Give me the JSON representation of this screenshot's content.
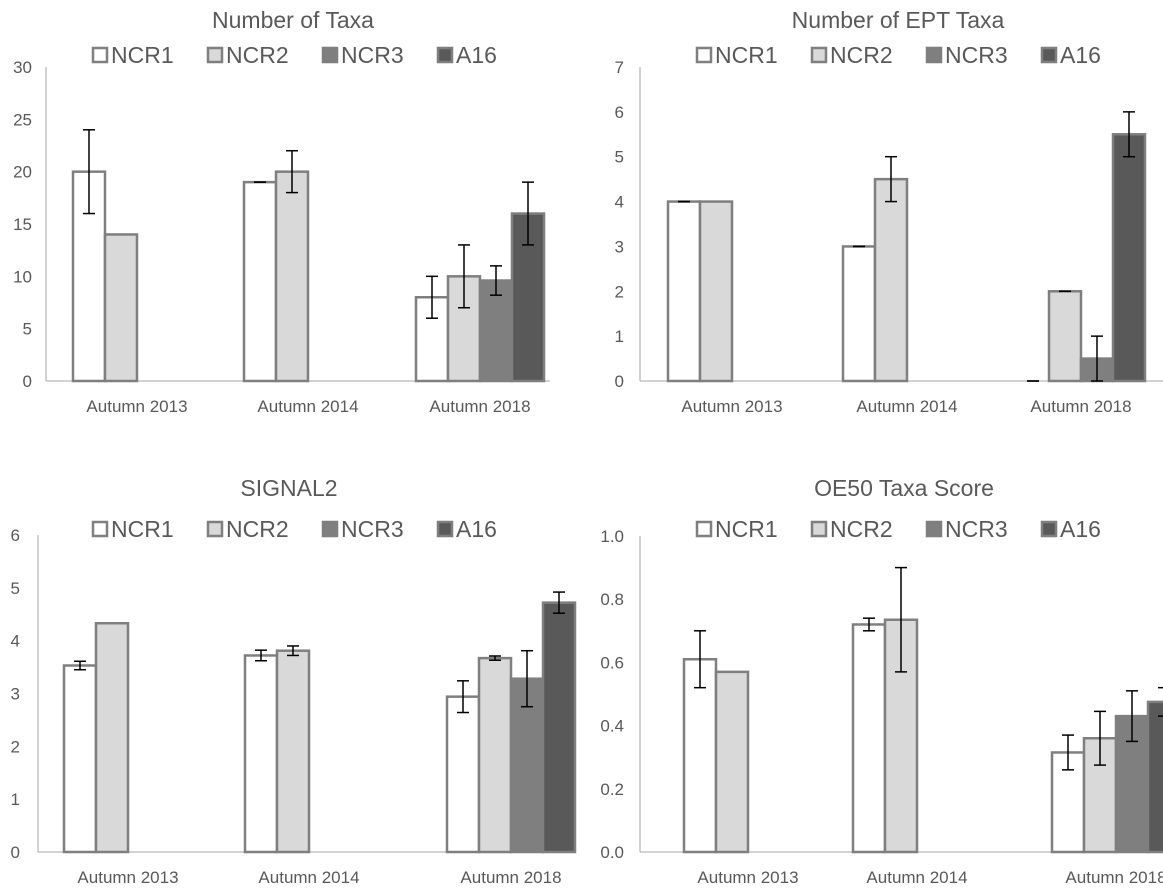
{
  "chart_data": [
    {
      "type": "bar",
      "title": "Number of Taxa",
      "categories": [
        "Autumn 2013",
        "Autumn 2014",
        "Autumn 2018"
      ],
      "ylim": [
        0,
        30
      ],
      "yticks": [
        "0",
        "5",
        "10",
        "15",
        "20",
        "25",
        "30"
      ],
      "ytick_values": [
        0,
        5,
        10,
        15,
        20,
        25,
        30
      ],
      "legend_position": "top",
      "grid": false,
      "series": [
        {
          "name": "NCR1",
          "values": [
            20,
            19,
            8
          ],
          "errors": [
            4,
            0,
            2
          ]
        },
        {
          "name": "NCR2",
          "values": [
            14,
            20,
            10
          ],
          "errors": [
            null,
            2,
            3
          ]
        },
        {
          "name": "NCR3",
          "values": [
            null,
            null,
            9.6
          ],
          "errors": [
            null,
            null,
            1.4
          ]
        },
        {
          "name": "A16",
          "values": [
            null,
            null,
            16
          ],
          "errors": [
            null,
            null,
            3
          ]
        }
      ]
    },
    {
      "type": "bar",
      "title": "Number of EPT Taxa",
      "categories": [
        "Autumn 2013",
        "Autumn 2014",
        "Autumn 2018"
      ],
      "ylim": [
        0,
        7
      ],
      "yticks": [
        "0",
        "1",
        "2",
        "3",
        "4",
        "5",
        "6",
        "7"
      ],
      "ytick_values": [
        0,
        1,
        2,
        3,
        4,
        5,
        6,
        7
      ],
      "legend_position": "top",
      "grid": false,
      "series": [
        {
          "name": "NCR1",
          "values": [
            4,
            3,
            0
          ],
          "errors": [
            0,
            0,
            0
          ]
        },
        {
          "name": "NCR2",
          "values": [
            4,
            4.5,
            2
          ],
          "errors": [
            null,
            0.5,
            0
          ]
        },
        {
          "name": "NCR3",
          "values": [
            null,
            null,
            0.5
          ],
          "errors": [
            null,
            null,
            0.5
          ]
        },
        {
          "name": "A16",
          "values": [
            null,
            null,
            5.5
          ],
          "errors": [
            null,
            null,
            0.5
          ]
        }
      ]
    },
    {
      "type": "bar",
      "title": "SIGNAL2",
      "categories": [
        "Autumn 2013",
        "Autumn 2014",
        "Autumn 2018"
      ],
      "ylim": [
        0,
        6
      ],
      "yticks": [
        "0",
        "1",
        "2",
        "3",
        "4",
        "5",
        "6"
      ],
      "ytick_values": [
        0,
        1,
        2,
        3,
        4,
        5,
        6
      ],
      "legend_position": "top",
      "grid": false,
      "series": [
        {
          "name": "NCR1",
          "values": [
            3.53,
            3.72,
            2.94
          ],
          "errors": [
            0.08,
            0.1,
            0.3
          ]
        },
        {
          "name": "NCR2",
          "values": [
            4.33,
            3.81,
            3.67
          ],
          "errors": [
            null,
            0.09,
            0.04
          ]
        },
        {
          "name": "NCR3",
          "values": [
            null,
            null,
            3.28
          ],
          "errors": [
            null,
            null,
            0.53
          ]
        },
        {
          "name": "A16",
          "values": [
            null,
            null,
            4.72
          ],
          "errors": [
            null,
            null,
            0.2
          ]
        }
      ]
    },
    {
      "type": "bar",
      "title": "OE50 Taxa Score",
      "categories": [
        "Autumn 2013",
        "Autumn 2014",
        "Autumn 2018"
      ],
      "ylim": [
        0,
        1.0
      ],
      "yticks": [
        "0.0",
        "0.2",
        "0.4",
        "0.6",
        "0.8",
        "1.0"
      ],
      "ytick_values": [
        0,
        0.2,
        0.4,
        0.6,
        0.8,
        1.0
      ],
      "legend_position": "top",
      "grid": false,
      "series": [
        {
          "name": "NCR1",
          "values": [
            0.61,
            0.72,
            0.315
          ],
          "errors": [
            0.09,
            0.02,
            0.055
          ]
        },
        {
          "name": "NCR2",
          "values": [
            0.57,
            0.735,
            0.36
          ],
          "errors": [
            null,
            0.165,
            0.085
          ]
        },
        {
          "name": "NCR3",
          "values": [
            null,
            null,
            0.43
          ],
          "errors": [
            null,
            null,
            0.08
          ]
        },
        {
          "name": "A16",
          "values": [
            null,
            null,
            0.475
          ],
          "errors": [
            null,
            null,
            0.045
          ]
        }
      ]
    }
  ],
  "colors": {
    "NCR1": "#ffffff",
    "NCR2": "#d9d9d9",
    "NCR3": "#7f7f7f",
    "A16": "#595959",
    "outline": "#7f7f7f",
    "axis": "#a6a6a6",
    "text": "#595959",
    "errorbar": "#000000"
  }
}
